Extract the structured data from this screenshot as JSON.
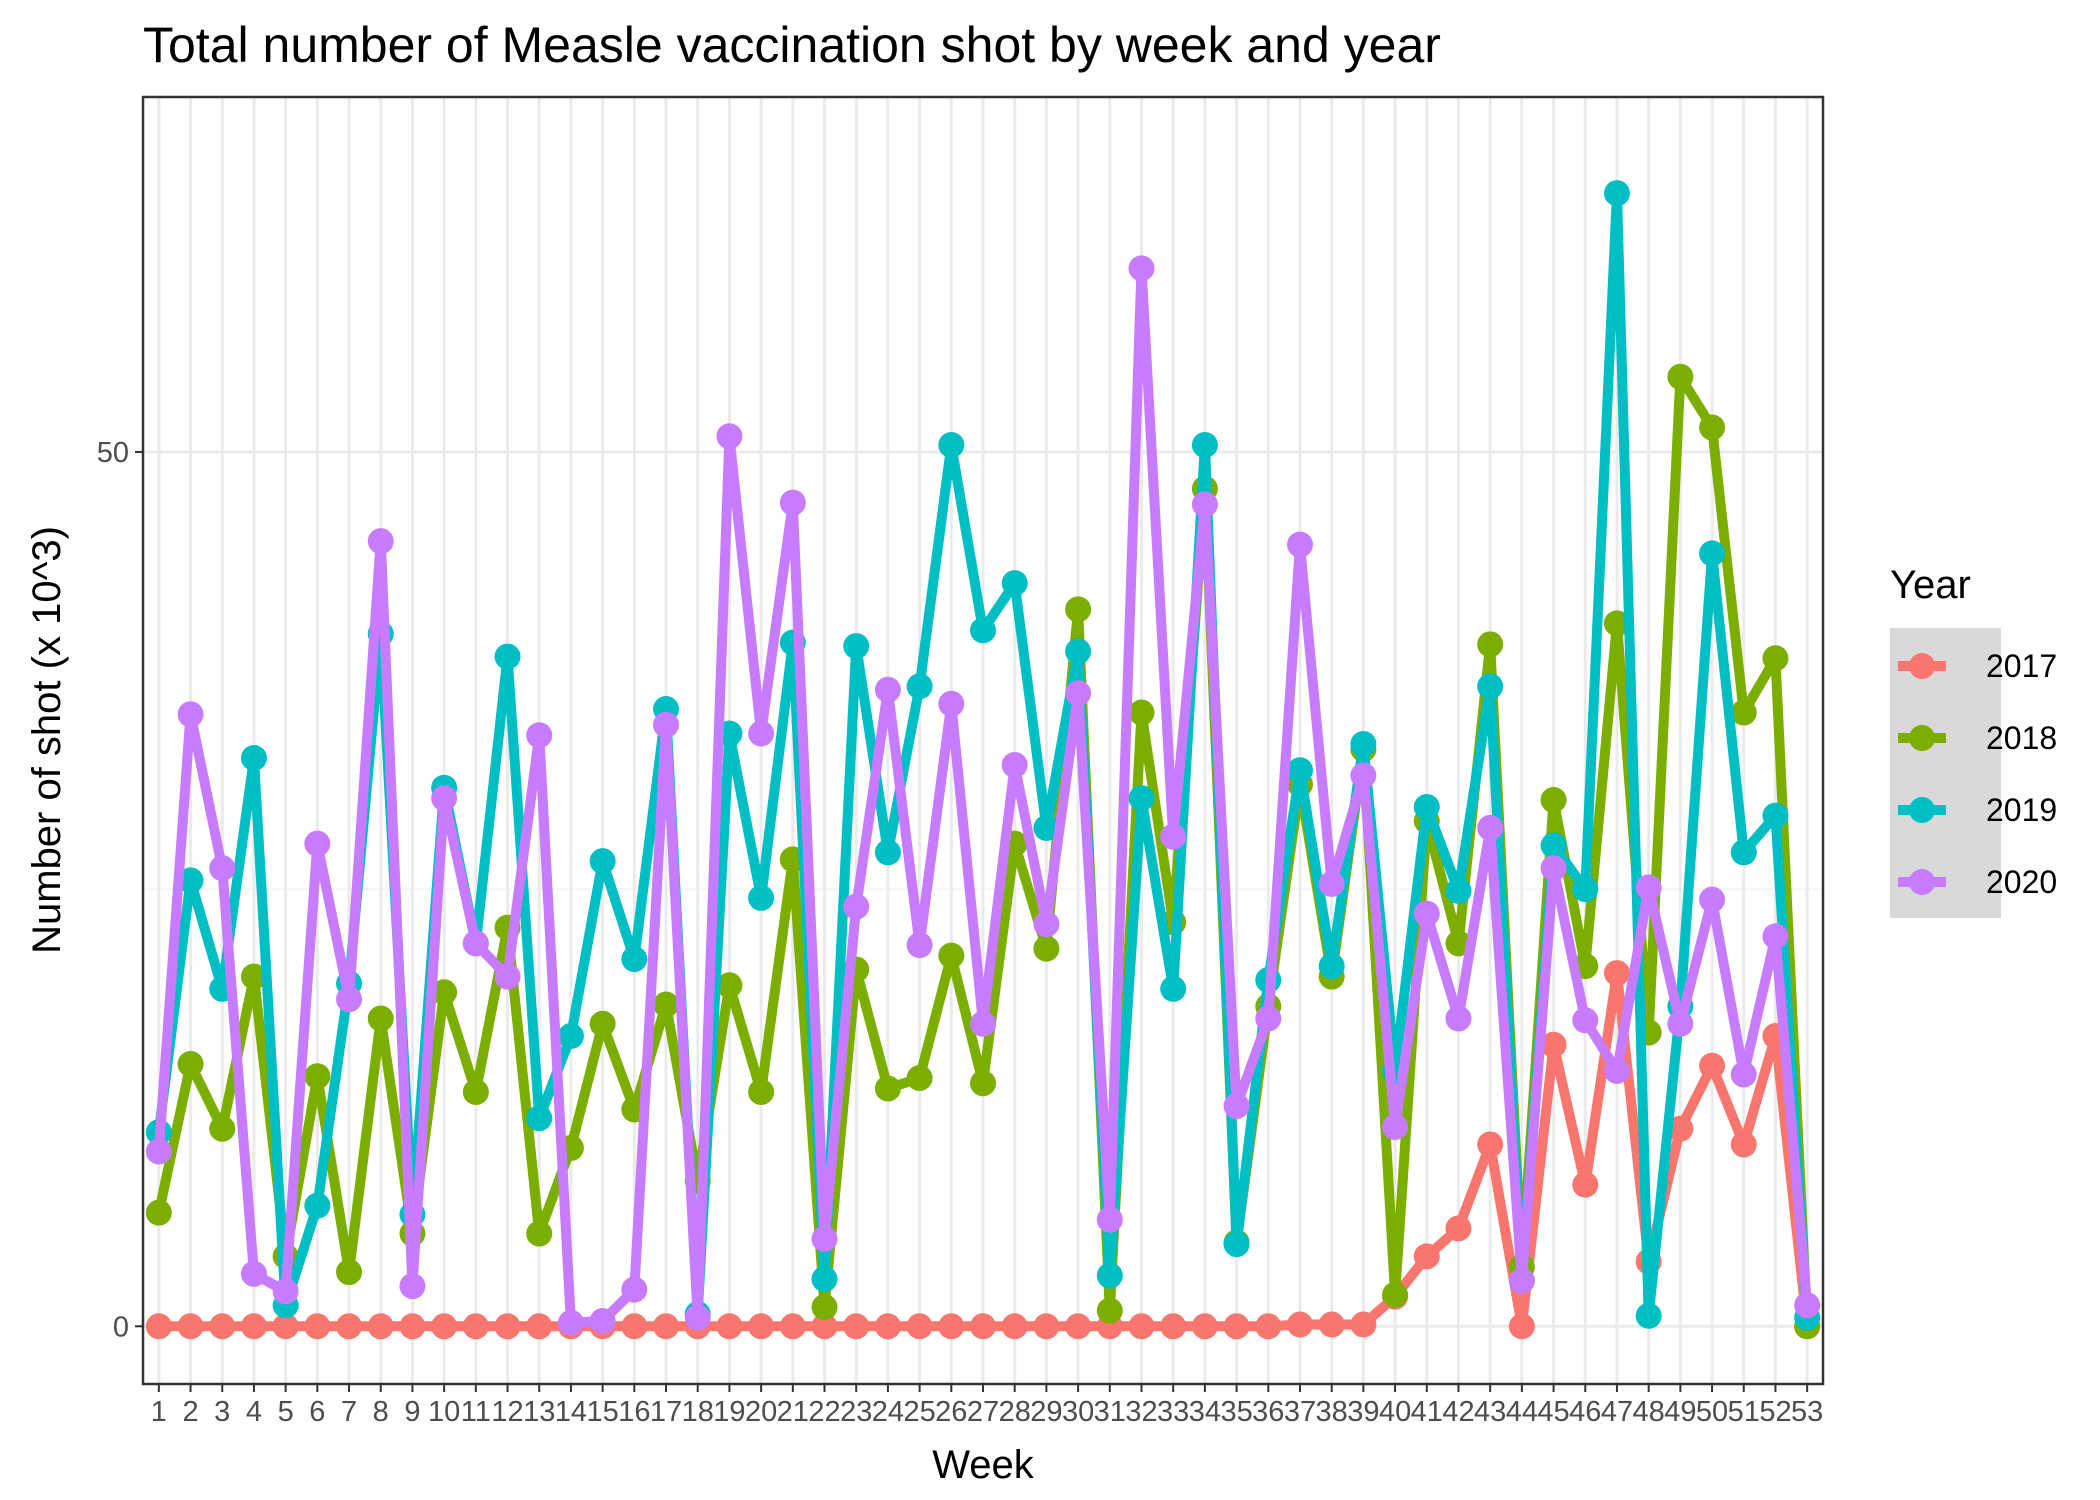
{
  "chart_data": {
    "type": "line",
    "title": "Total number of Measle vaccination shot by week and year",
    "xlabel": "Week",
    "ylabel": "Number of shot (x 10^3)",
    "x": [
      1,
      2,
      3,
      4,
      5,
      6,
      7,
      8,
      9,
      10,
      11,
      12,
      13,
      14,
      15,
      16,
      17,
      18,
      19,
      20,
      21,
      22,
      23,
      24,
      25,
      26,
      27,
      28,
      29,
      30,
      31,
      32,
      33,
      34,
      35,
      36,
      37,
      38,
      39,
      40,
      41,
      42,
      43,
      44,
      45,
      46,
      47,
      48,
      49,
      50,
      51,
      52,
      53
    ],
    "xlim": [
      0.5,
      53.5
    ],
    "ylim": [
      -3.3,
      70.3
    ],
    "yticks": [
      0,
      50
    ],
    "grid": true,
    "legend": {
      "title": "Year",
      "position": "right"
    },
    "series": [
      {
        "name": "2017",
        "color": "#F8766D",
        "values": [
          0,
          0,
          0,
          0,
          0,
          0,
          0,
          0,
          0,
          0,
          0,
          0,
          0,
          0,
          0,
          0,
          0,
          0,
          0,
          0,
          0,
          0,
          0,
          0,
          0,
          0,
          0,
          0,
          0,
          0,
          0,
          0,
          0,
          0,
          0,
          0,
          0.1,
          0.1,
          0.1,
          1.7,
          4,
          5.6,
          10.4,
          0,
          16.1,
          8.1,
          20.2,
          3.7,
          11.3,
          14.9,
          10.4,
          16.6,
          0
        ]
      },
      {
        "name": "2018",
        "color": "#7CAE00",
        "values": [
          6.5,
          15,
          11.3,
          20,
          4,
          14.3,
          3.1,
          17.6,
          5.3,
          19.1,
          13.4,
          22.8,
          5.3,
          10.2,
          17.3,
          12.4,
          18.4,
          8.3,
          19.5,
          13.4,
          26.7,
          1.1,
          20.4,
          13.6,
          14.2,
          21.2,
          13.9,
          27.6,
          21.6,
          41,
          0.9,
          35.1,
          23.1,
          47.9,
          4.8,
          18.3,
          31,
          20,
          33,
          1.8,
          28.9,
          21.9,
          39,
          3.4,
          30.1,
          20.6,
          40.2,
          16.8,
          54.3,
          51.4,
          35.1,
          38.2,
          0
        ]
      },
      {
        "name": "2019",
        "color": "#00BFC4",
        "values": [
          11.1,
          25.5,
          19.3,
          32.5,
          1.2,
          6.9,
          19.6,
          39.6,
          6.4,
          30.8,
          21.9,
          38.3,
          11.9,
          16.6,
          26.6,
          21,
          35.3,
          0.7,
          33.9,
          24.5,
          39.1,
          2.7,
          38.9,
          27.1,
          36.6,
          50.4,
          39.8,
          42.5,
          28.5,
          38.6,
          2.9,
          30.2,
          19.3,
          50.4,
          4.7,
          19.8,
          31.8,
          20.6,
          33.3,
          14.6,
          29.7,
          24.9,
          36.6,
          2.6,
          27.5,
          25,
          64.8,
          0.6,
          18.3,
          44.2,
          27.1,
          29.2,
          0.5
        ]
      },
      {
        "name": "2020",
        "color": "#C77CFF",
        "values": [
          10,
          35,
          26.2,
          3,
          2,
          27.6,
          18.7,
          44.9,
          2.3,
          30.2,
          21.9,
          20,
          33.8,
          0.2,
          0.3,
          2.1,
          34.4,
          0.5,
          50.9,
          33.9,
          47.1,
          5,
          24,
          36.4,
          21.8,
          35.6,
          17.3,
          32.1,
          23,
          36.2,
          6.1,
          60.5,
          28,
          47,
          12.6,
          17.6,
          44.7,
          25.3,
          31.5,
          11.4,
          23.6,
          17.6,
          28.5,
          2.6,
          26.2,
          17.5,
          14.6,
          25.1,
          17.3,
          24.4,
          14.4,
          22.3,
          1.2
        ]
      }
    ]
  }
}
